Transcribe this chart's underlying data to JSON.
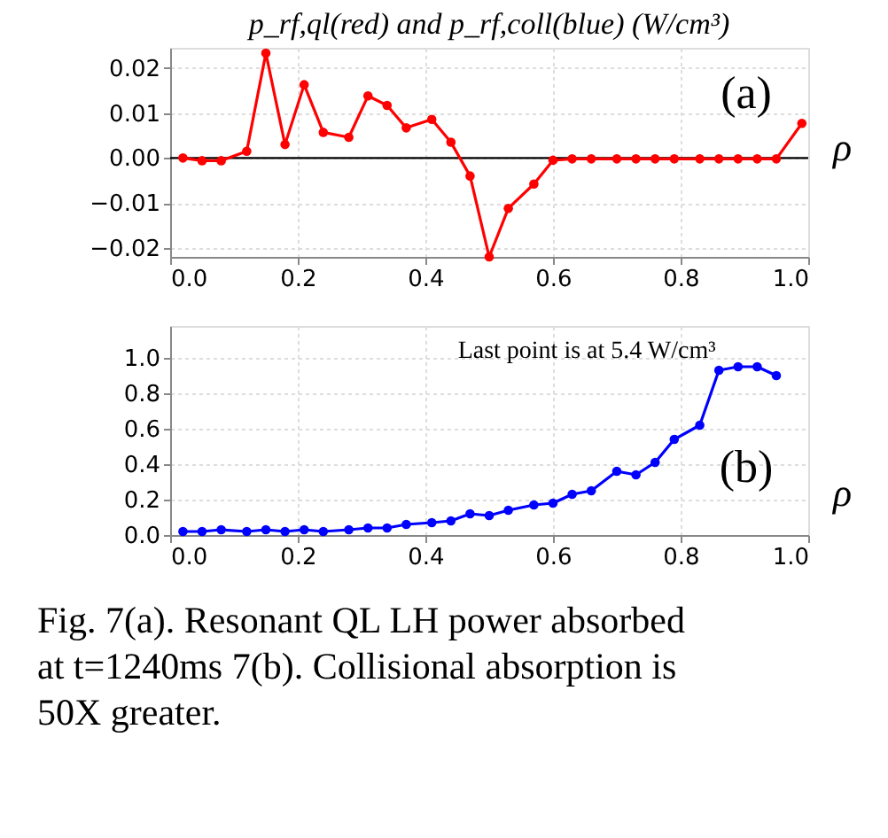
{
  "chart_data": [
    {
      "type": "line",
      "title": "p_rf,ql(red) and p_rf,coll(blue)  (W/cm³)",
      "xlabel": "ρ",
      "x": [
        0.02,
        0.05,
        0.08,
        0.12,
        0.15,
        0.18,
        0.21,
        0.24,
        0.28,
        0.31,
        0.34,
        0.37,
        0.41,
        0.44,
        0.47,
        0.5,
        0.53,
        0.57,
        0.6,
        0.63,
        0.66,
        0.7,
        0.73,
        0.76,
        0.79,
        0.83,
        0.86,
        0.89,
        0.92,
        0.95,
        0.99
      ],
      "series": [
        {
          "color": "#ff0000",
          "values": [
            0,
            -0.0006,
            -0.0006,
            0.0015,
            0.0233,
            0.003,
            0.0163,
            0.0057,
            0.0046,
            0.0138,
            0.0117,
            0.0067,
            0.0086,
            0.0035,
            -0.004,
            -0.022,
            -0.0112,
            -0.0058,
            -0.0005,
            -0.0002,
            -0.0002,
            -0.0002,
            -0.0002,
            -0.0002,
            -0.0002,
            -0.0002,
            -0.0002,
            -0.0002,
            -0.0002,
            -0.0002,
            0.0077
          ]
        }
      ],
      "xlim": [
        0,
        1
      ],
      "xticks": [
        {
          "value": 0,
          "label": "0.0"
        },
        {
          "value": 0.2,
          "label": "0.2"
        },
        {
          "value": 0.4,
          "label": "0.4"
        },
        {
          "value": 0.6,
          "label": "0.6"
        },
        {
          "value": 0.8,
          "label": "0.8"
        },
        {
          "value": 1,
          "label": "1.0"
        }
      ],
      "ylim": [
        -0.022,
        0.0245
      ],
      "yticks": [
        {
          "value": -0.02,
          "label": "−0.02"
        },
        {
          "value": -0.01,
          "label": "−0.01"
        },
        {
          "value": 0,
          "label": "0.00"
        },
        {
          "value": 0.01,
          "label": "0.01"
        },
        {
          "value": 0.02,
          "label": "0.02"
        }
      ],
      "ref_lines": [
        {
          "axis": "y",
          "value": 0,
          "color": "#000000"
        }
      ],
      "annotations": [
        "(a)"
      ],
      "grid": true,
      "marker": "circle",
      "line_style": "solid"
    },
    {
      "type": "line",
      "xlabel": "ρ",
      "x": [
        0.02,
        0.05,
        0.08,
        0.12,
        0.15,
        0.18,
        0.21,
        0.24,
        0.28,
        0.31,
        0.34,
        0.37,
        0.41,
        0.44,
        0.47,
        0.5,
        0.53,
        0.57,
        0.6,
        0.63,
        0.66,
        0.7,
        0.73,
        0.76,
        0.79,
        0.83,
        0.86,
        0.89,
        0.92,
        0.95
      ],
      "series": [
        {
          "color": "#0000ff",
          "values": [
            0.02,
            0.02,
            0.03,
            0.02,
            0.03,
            0.02,
            0.03,
            0.02,
            0.03,
            0.04,
            0.04,
            0.06,
            0.07,
            0.08,
            0.12,
            0.11,
            0.14,
            0.17,
            0.18,
            0.23,
            0.25,
            0.36,
            0.34,
            0.41,
            0.54,
            0.62,
            0.93,
            0.95,
            0.95,
            0.9
          ]
        }
      ],
      "xlim": [
        0,
        1
      ],
      "xticks": [
        {
          "value": 0,
          "label": "0.0"
        },
        {
          "value": 0.2,
          "label": "0.2"
        },
        {
          "value": 0.4,
          "label": "0.4"
        },
        {
          "value": 0.6,
          "label": "0.6"
        },
        {
          "value": 0.8,
          "label": "0.8"
        },
        {
          "value": 1,
          "label": "1.0"
        }
      ],
      "ylim": [
        0,
        1.18
      ],
      "yticks": [
        {
          "value": 0,
          "label": "0.0"
        },
        {
          "value": 0.2,
          "label": "0.2"
        },
        {
          "value": 0.4,
          "label": "0.4"
        },
        {
          "value": 0.6,
          "label": "0.6"
        },
        {
          "value": 0.8,
          "label": "0.8"
        },
        {
          "value": 1,
          "label": "1.0"
        }
      ],
      "annotations": [
        "Last point is at 5.4 W/cm³",
        "(b)",
        "Fig. 7(a).  Resonant QL LH power absorbed at t=1240ms 7(b). Collisional absorption is 50X greater."
      ],
      "grid": true,
      "marker": "circle",
      "line_style": "solid"
    }
  ]
}
